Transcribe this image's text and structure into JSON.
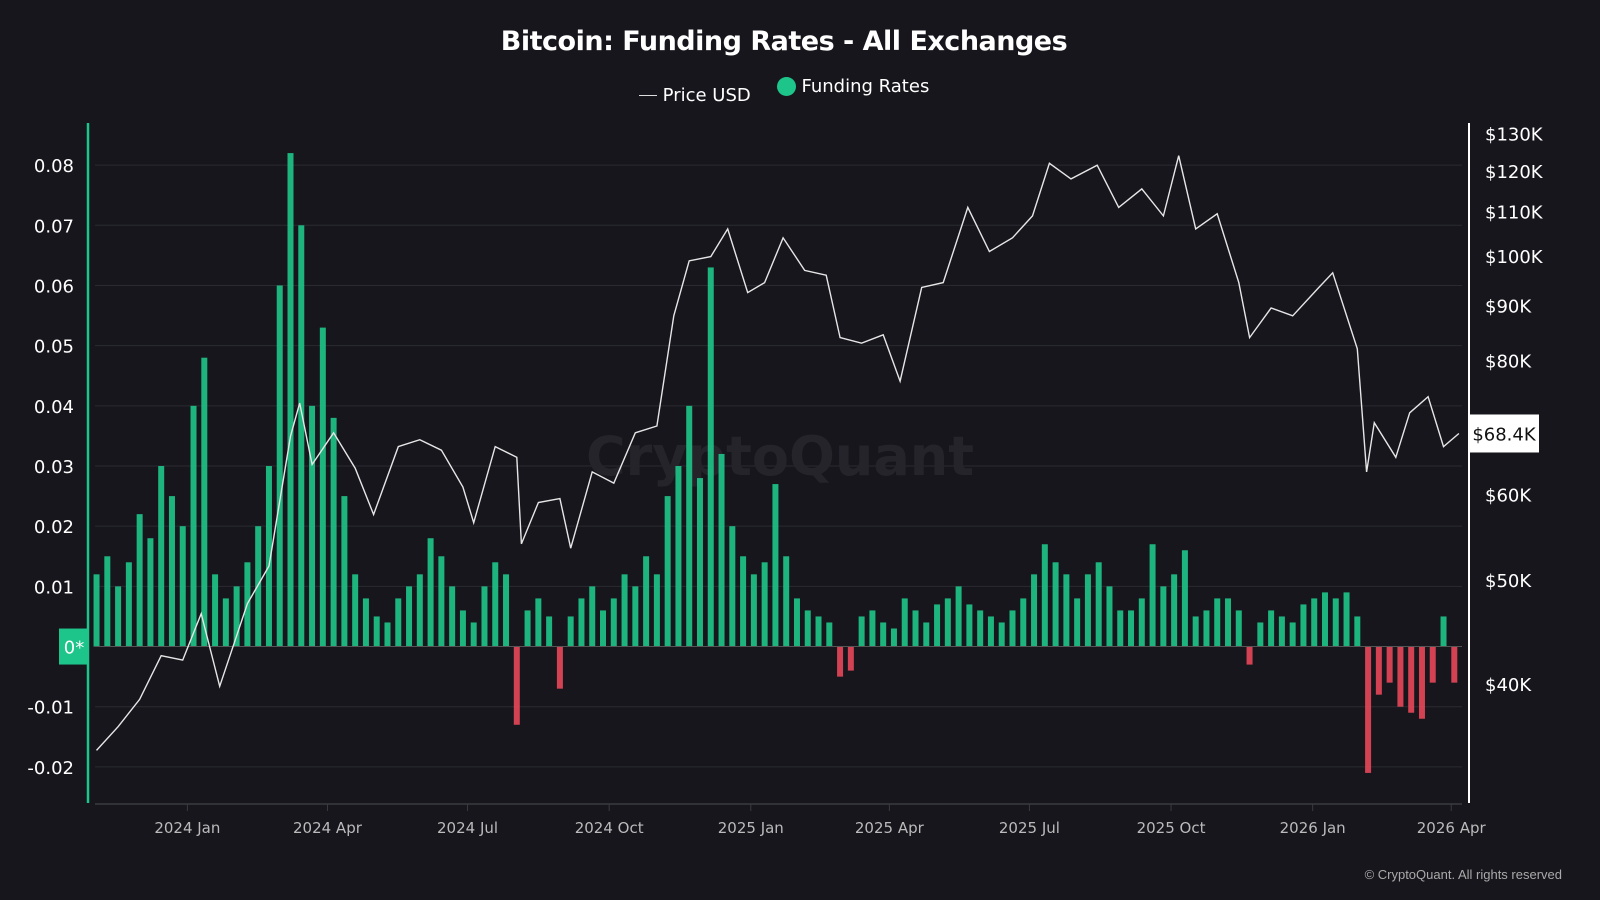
{
  "chart_data": {
    "type": "bar+line",
    "title": "Bitcoin: Funding Rates - All Exchanges",
    "legend": [
      {
        "name": "Price USD",
        "symbol": "line",
        "color": "#dddddd"
      },
      {
        "name": "Funding Rates",
        "symbol": "dot",
        "color": "#1ec58a"
      }
    ],
    "legend_placement": "top-center",
    "x_ticks": [
      "2024 Jan",
      "2024 Apr",
      "2024 Jul",
      "2024 Oct",
      "2025 Jan",
      "2025 Apr",
      "2025 Jul",
      "2025 Oct",
      "2026 Jan",
      "2026 Apr"
    ],
    "x_tick_dates": [
      "2024-01-01",
      "2024-04-01",
      "2024-07-01",
      "2024-10-01",
      "2025-01-01",
      "2025-04-01",
      "2025-07-01",
      "2025-10-01",
      "2026-01-01",
      "2026-04-01"
    ],
    "x_range": [
      "2023-11-02",
      "2026-04-08"
    ],
    "y_left": {
      "ticks": [
        "0.08",
        "0.07",
        "0.06",
        "0.05",
        "0.04",
        "0.03",
        "0.02",
        "0.01",
        "0*",
        "-0.01",
        "-0.02"
      ],
      "range": [
        -0.026,
        0.087
      ],
      "zero_label": "0*"
    },
    "y_right": {
      "scale": "log",
      "ticks": [
        "$130K",
        "$120K",
        "$110K",
        "$100K",
        "$90K",
        "$80K",
        "$60K",
        "$50K",
        "$40K"
      ],
      "tick_values": [
        130000,
        120000,
        110000,
        100000,
        90000,
        80000,
        60000,
        50000,
        40000
      ],
      "range": [
        31000,
        133000
      ],
      "current_label": "$68.4K",
      "current_value": 68400
    },
    "grid": true,
    "colors": {
      "positive": "#1ec58a",
      "negative": "#e8475a",
      "price": "#e6e6e6",
      "background": "#17161c",
      "left_axis": "#1ec58a"
    },
    "price_usd": [
      [
        "2023-11-03",
        34700
      ],
      [
        "2023-11-17",
        36500
      ],
      [
        "2023-12-01",
        38700
      ],
      [
        "2023-12-15",
        42500
      ],
      [
        "2023-12-29",
        42100
      ],
      [
        "2024-01-10",
        46500
      ],
      [
        "2024-01-22",
        39800
      ],
      [
        "2024-02-09",
        47500
      ],
      [
        "2024-02-23",
        51500
      ],
      [
        "2024-03-08",
        68000
      ],
      [
        "2024-03-14",
        73000
      ],
      [
        "2024-03-22",
        64000
      ],
      [
        "2024-04-05",
        68500
      ],
      [
        "2024-04-19",
        63500
      ],
      [
        "2024-05-01",
        57500
      ],
      [
        "2024-05-17",
        66500
      ],
      [
        "2024-05-31",
        67500
      ],
      [
        "2024-06-14",
        66000
      ],
      [
        "2024-06-28",
        61000
      ],
      [
        "2024-07-05",
        56500
      ],
      [
        "2024-07-19",
        66500
      ],
      [
        "2024-08-02",
        65000
      ],
      [
        "2024-08-05",
        54000
      ],
      [
        "2024-08-16",
        59000
      ],
      [
        "2024-08-30",
        59500
      ],
      [
        "2024-09-06",
        53500
      ],
      [
        "2024-09-20",
        63000
      ],
      [
        "2024-10-04",
        61500
      ],
      [
        "2024-10-18",
        68500
      ],
      [
        "2024-11-01",
        69500
      ],
      [
        "2024-11-12",
        88000
      ],
      [
        "2024-11-22",
        99000
      ],
      [
        "2024-12-06",
        99900
      ],
      [
        "2024-12-17",
        106000
      ],
      [
        "2024-12-30",
        92500
      ],
      [
        "2025-01-10",
        94500
      ],
      [
        "2025-01-22",
        104000
      ],
      [
        "2025-02-05",
        97000
      ],
      [
        "2025-02-19",
        96000
      ],
      [
        "2025-02-28",
        84000
      ],
      [
        "2025-03-14",
        83000
      ],
      [
        "2025-03-28",
        84500
      ],
      [
        "2025-04-08",
        76500
      ],
      [
        "2025-04-22",
        93500
      ],
      [
        "2025-05-06",
        94500
      ],
      [
        "2025-05-22",
        111000
      ],
      [
        "2025-06-05",
        101000
      ],
      [
        "2025-06-20",
        104000
      ],
      [
        "2025-07-03",
        109000
      ],
      [
        "2025-07-14",
        122000
      ],
      [
        "2025-07-28",
        118000
      ],
      [
        "2025-08-14",
        121500
      ],
      [
        "2025-08-28",
        111000
      ],
      [
        "2025-09-12",
        115500
      ],
      [
        "2025-09-26",
        109000
      ],
      [
        "2025-10-06",
        124000
      ],
      [
        "2025-10-17",
        106000
      ],
      [
        "2025-10-31",
        109500
      ],
      [
        "2025-11-14",
        94500
      ],
      [
        "2025-11-21",
        84000
      ],
      [
        "2025-12-05",
        89500
      ],
      [
        "2025-12-19",
        88000
      ],
      [
        "2026-01-05",
        93500
      ],
      [
        "2026-01-14",
        96500
      ],
      [
        "2026-01-30",
        82000
      ],
      [
        "2026-02-05",
        63000
      ],
      [
        "2026-02-10",
        70000
      ],
      [
        "2026-02-24",
        65000
      ],
      [
        "2026-03-05",
        71500
      ],
      [
        "2026-03-17",
        74000
      ],
      [
        "2026-03-27",
        66500
      ],
      [
        "2026-04-06",
        68400
      ]
    ],
    "funding_rates": [
      [
        "2023-11-03",
        0.012
      ],
      [
        "2023-11-10",
        0.015
      ],
      [
        "2023-11-17",
        0.01
      ],
      [
        "2023-11-24",
        0.014
      ],
      [
        "2023-12-01",
        0.022
      ],
      [
        "2023-12-08",
        0.018
      ],
      [
        "2023-12-15",
        0.03
      ],
      [
        "2023-12-22",
        0.025
      ],
      [
        "2023-12-29",
        0.02
      ],
      [
        "2024-01-05",
        0.04
      ],
      [
        "2024-01-12",
        0.048
      ],
      [
        "2024-01-19",
        0.012
      ],
      [
        "2024-01-26",
        0.008
      ],
      [
        "2024-02-02",
        0.01
      ],
      [
        "2024-02-09",
        0.014
      ],
      [
        "2024-02-16",
        0.02
      ],
      [
        "2024-02-23",
        0.03
      ],
      [
        "2024-03-01",
        0.06
      ],
      [
        "2024-03-08",
        0.082
      ],
      [
        "2024-03-15",
        0.07
      ],
      [
        "2024-03-22",
        0.04
      ],
      [
        "2024-03-29",
        0.053
      ],
      [
        "2024-04-05",
        0.038
      ],
      [
        "2024-04-12",
        0.025
      ],
      [
        "2024-04-19",
        0.012
      ],
      [
        "2024-04-26",
        0.008
      ],
      [
        "2024-05-03",
        0.005
      ],
      [
        "2024-05-10",
        0.004
      ],
      [
        "2024-05-17",
        0.008
      ],
      [
        "2024-05-24",
        0.01
      ],
      [
        "2024-05-31",
        0.012
      ],
      [
        "2024-06-07",
        0.018
      ],
      [
        "2024-06-14",
        0.015
      ],
      [
        "2024-06-21",
        0.01
      ],
      [
        "2024-06-28",
        0.006
      ],
      [
        "2024-07-05",
        0.004
      ],
      [
        "2024-07-12",
        0.01
      ],
      [
        "2024-07-19",
        0.014
      ],
      [
        "2024-07-26",
        0.012
      ],
      [
        "2024-08-02",
        -0.013
      ],
      [
        "2024-08-09",
        0.006
      ],
      [
        "2024-08-16",
        0.008
      ],
      [
        "2024-08-23",
        0.005
      ],
      [
        "2024-08-30",
        -0.007
      ],
      [
        "2024-09-06",
        0.005
      ],
      [
        "2024-09-13",
        0.008
      ],
      [
        "2024-09-20",
        0.01
      ],
      [
        "2024-09-27",
        0.006
      ],
      [
        "2024-10-04",
        0.008
      ],
      [
        "2024-10-11",
        0.012
      ],
      [
        "2024-10-18",
        0.01
      ],
      [
        "2024-10-25",
        0.015
      ],
      [
        "2024-11-01",
        0.012
      ],
      [
        "2024-11-08",
        0.025
      ],
      [
        "2024-11-15",
        0.03
      ],
      [
        "2024-11-22",
        0.04
      ],
      [
        "2024-11-29",
        0.028
      ],
      [
        "2024-12-06",
        0.063
      ],
      [
        "2024-12-13",
        0.032
      ],
      [
        "2024-12-20",
        0.02
      ],
      [
        "2024-12-27",
        0.015
      ],
      [
        "2025-01-03",
        0.012
      ],
      [
        "2025-01-10",
        0.014
      ],
      [
        "2025-01-17",
        0.027
      ],
      [
        "2025-01-24",
        0.015
      ],
      [
        "2025-01-31",
        0.008
      ],
      [
        "2025-02-07",
        0.006
      ],
      [
        "2025-02-14",
        0.005
      ],
      [
        "2025-02-21",
        0.004
      ],
      [
        "2025-02-28",
        -0.005
      ],
      [
        "2025-03-07",
        -0.004
      ],
      [
        "2025-03-14",
        0.005
      ],
      [
        "2025-03-21",
        0.006
      ],
      [
        "2025-03-28",
        0.004
      ],
      [
        "2025-04-04",
        0.003
      ],
      [
        "2025-04-11",
        0.008
      ],
      [
        "2025-04-18",
        0.006
      ],
      [
        "2025-04-25",
        0.004
      ],
      [
        "2025-05-02",
        0.007
      ],
      [
        "2025-05-09",
        0.008
      ],
      [
        "2025-05-16",
        0.01
      ],
      [
        "2025-05-23",
        0.007
      ],
      [
        "2025-05-30",
        0.006
      ],
      [
        "2025-06-06",
        0.005
      ],
      [
        "2025-06-13",
        0.004
      ],
      [
        "2025-06-20",
        0.006
      ],
      [
        "2025-06-27",
        0.008
      ],
      [
        "2025-07-04",
        0.012
      ],
      [
        "2025-07-11",
        0.017
      ],
      [
        "2025-07-18",
        0.014
      ],
      [
        "2025-07-25",
        0.012
      ],
      [
        "2025-08-01",
        0.008
      ],
      [
        "2025-08-08",
        0.012
      ],
      [
        "2025-08-15",
        0.014
      ],
      [
        "2025-08-22",
        0.01
      ],
      [
        "2025-08-29",
        0.006
      ],
      [
        "2025-09-05",
        0.006
      ],
      [
        "2025-09-12",
        0.008
      ],
      [
        "2025-09-19",
        0.017
      ],
      [
        "2025-09-26",
        0.01
      ],
      [
        "2025-10-03",
        0.012
      ],
      [
        "2025-10-10",
        0.016
      ],
      [
        "2025-10-17",
        0.005
      ],
      [
        "2025-10-24",
        0.006
      ],
      [
        "2025-10-31",
        0.008
      ],
      [
        "2025-11-07",
        0.008
      ],
      [
        "2025-11-14",
        0.006
      ],
      [
        "2025-11-21",
        -0.003
      ],
      [
        "2025-11-28",
        0.004
      ],
      [
        "2025-12-05",
        0.006
      ],
      [
        "2025-12-12",
        0.005
      ],
      [
        "2025-12-19",
        0.004
      ],
      [
        "2025-12-26",
        0.007
      ],
      [
        "2026-01-02",
        0.008
      ],
      [
        "2026-01-09",
        0.009
      ],
      [
        "2026-01-16",
        0.008
      ],
      [
        "2026-01-23",
        0.009
      ],
      [
        "2026-01-30",
        0.005
      ],
      [
        "2026-02-06",
        -0.021
      ],
      [
        "2026-02-13",
        -0.008
      ],
      [
        "2026-02-20",
        -0.006
      ],
      [
        "2026-02-27",
        -0.01
      ],
      [
        "2026-03-06",
        -0.011
      ],
      [
        "2026-03-13",
        -0.012
      ],
      [
        "2026-03-20",
        -0.006
      ],
      [
        "2026-03-27",
        0.005
      ],
      [
        "2026-04-03",
        -0.006
      ]
    ],
    "watermark": "CryptoQuant"
  },
  "copyright": "© CryptoQuant. All rights reserved"
}
